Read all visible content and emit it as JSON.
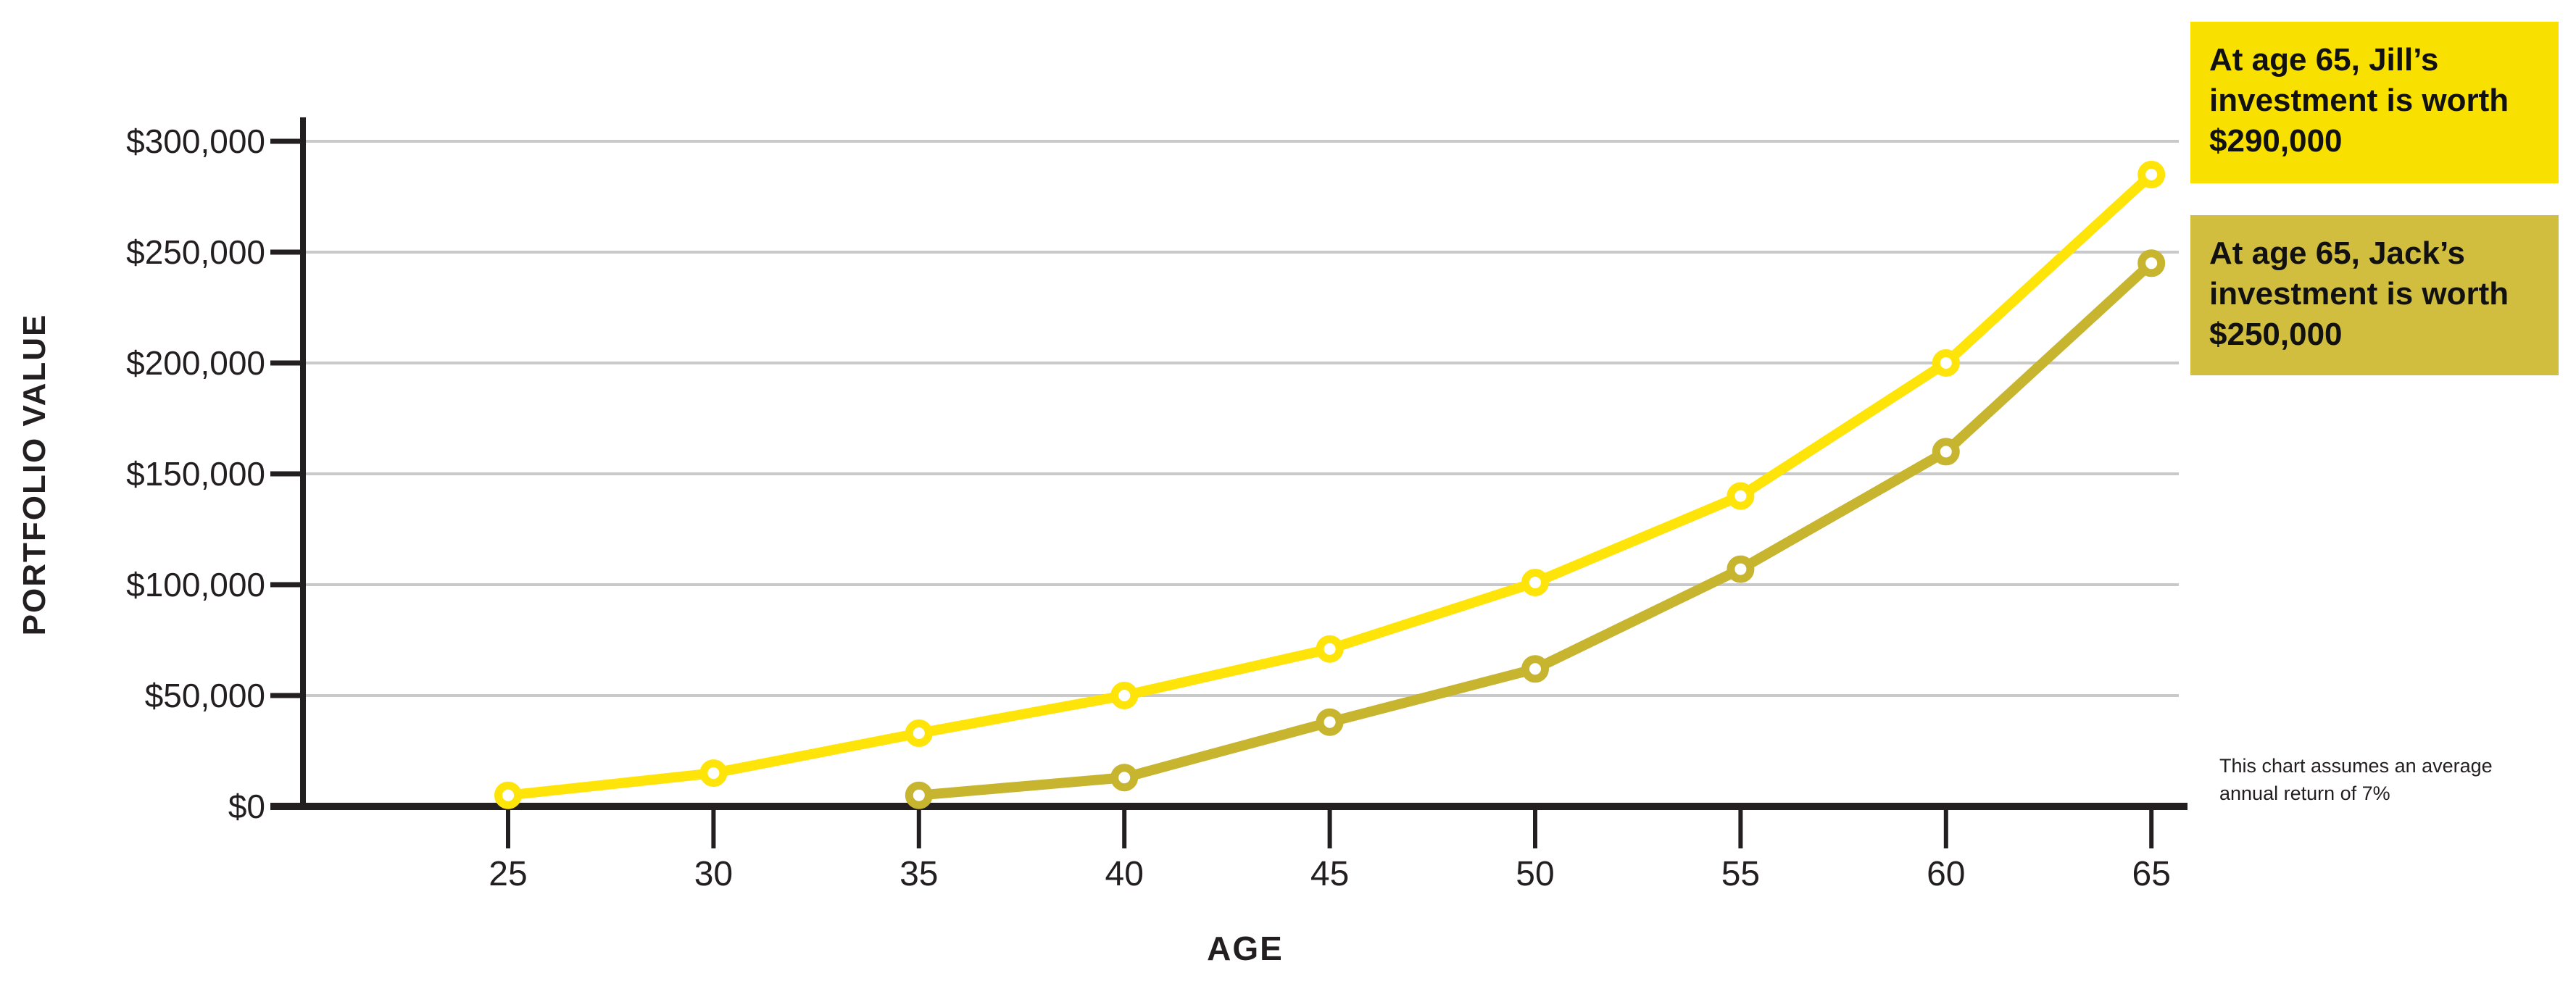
{
  "chart_data": {
    "type": "line",
    "title": "",
    "xlabel": "AGE",
    "ylabel": "PORTFOLIO VALUE",
    "x_ticks": [
      25,
      30,
      35,
      40,
      45,
      50,
      55,
      60,
      65
    ],
    "xlim": [
      25,
      65
    ],
    "ylim": [
      0,
      300000
    ],
    "y_ticks": [
      {
        "value": 0,
        "label": "$0"
      },
      {
        "value": 50000,
        "label": "$50,000"
      },
      {
        "value": 100000,
        "label": "$100,000"
      },
      {
        "value": 150000,
        "label": "$150,000"
      },
      {
        "value": 200000,
        "label": "$200,000"
      },
      {
        "value": 250000,
        "label": "$250,000"
      },
      {
        "value": 300000,
        "label": "$300,000"
      }
    ],
    "grid": "horizontal-only",
    "legend_position": "none",
    "series": [
      {
        "name": "Jill",
        "color": "#FFE40A",
        "marker": "open-circle",
        "points": [
          {
            "age": 25,
            "value": 5000
          },
          {
            "age": 30,
            "value": 15000
          },
          {
            "age": 35,
            "value": 33000
          },
          {
            "age": 40,
            "value": 50000
          },
          {
            "age": 45,
            "value": 71000
          },
          {
            "age": 50,
            "value": 101000
          },
          {
            "age": 55,
            "value": 140000
          },
          {
            "age": 60,
            "value": 200000
          },
          {
            "age": 65,
            "value": 285000
          }
        ]
      },
      {
        "name": "Jack",
        "color": "#C7B42F",
        "marker": "open-circle",
        "points": [
          {
            "age": 35,
            "value": 5000
          },
          {
            "age": 40,
            "value": 13000
          },
          {
            "age": 45,
            "value": 38000
          },
          {
            "age": 50,
            "value": 62000
          },
          {
            "age": 55,
            "value": 107000
          },
          {
            "age": 60,
            "value": 160000
          },
          {
            "age": 65,
            "value": 245000
          }
        ]
      }
    ]
  },
  "annotations": {
    "jill_callout": {
      "text": "At age 65, Jill’s investment is worth $290,000",
      "bg": "#F8E000"
    },
    "jack_callout": {
      "text": "At age 65, Jack’s investment is worth $250,000",
      "bg": "#D2BE3E"
    },
    "footnote": "This chart assumes an average annual return of 7%"
  },
  "colors": {
    "axis": "#231F20",
    "gridline": "#C9C9C9",
    "background": "#FFFFFF",
    "tick_label": "#231F20"
  }
}
